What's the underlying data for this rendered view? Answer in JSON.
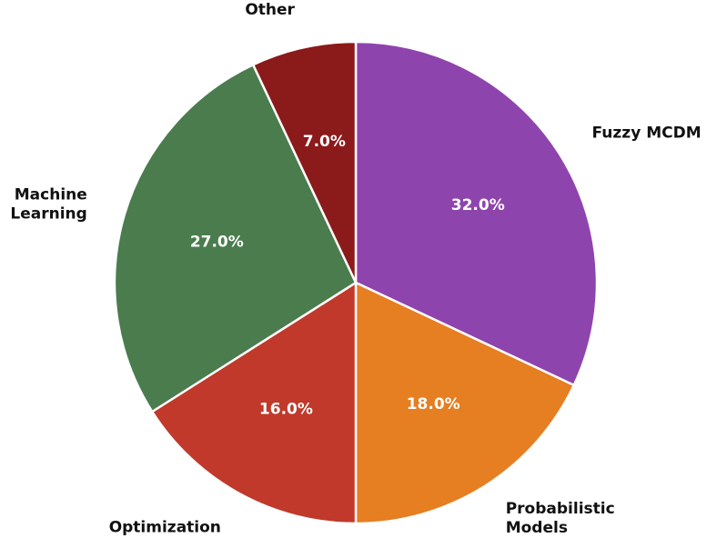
{
  "chart_data": {
    "type": "pie",
    "title": "",
    "start_angle_deg": 90,
    "direction": "clockwise",
    "slices": [
      {
        "label": "Fuzzy MCDM",
        "value": 32.0,
        "display": "32.0%",
        "color": "#8E44AD"
      },
      {
        "label": "Probabilistic Models",
        "value": 18.0,
        "display": "18.0%",
        "color": "#E67E22"
      },
      {
        "label": "Optimization",
        "value": 16.0,
        "display": "16.0%",
        "color": "#C0392B"
      },
      {
        "label": "Machine Learning",
        "value": 27.0,
        "display": "27.0%",
        "color": "#4A7C4E"
      },
      {
        "label": "Other",
        "value": 7.0,
        "display": "7.0%",
        "color": "#8B1A1A"
      }
    ]
  }
}
